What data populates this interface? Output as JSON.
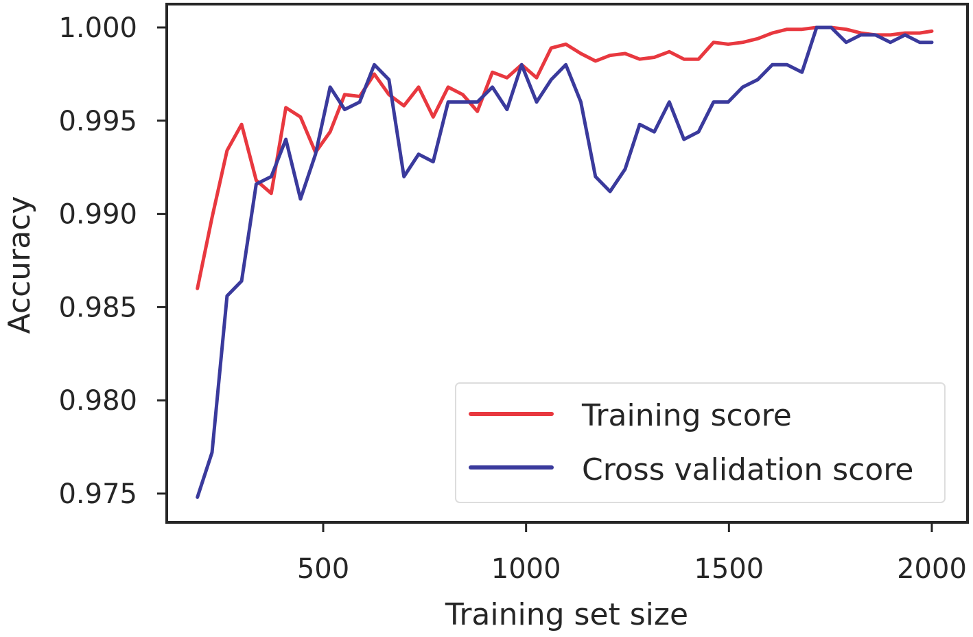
{
  "chart_data": {
    "type": "line",
    "title": "",
    "xlabel": "Training set size",
    "ylabel": "Accuracy",
    "xlim": [
      200,
      2000
    ],
    "ylim": [
      0.9738,
      1.0006
    ],
    "xticks": [
      500,
      1000,
      1500,
      2000
    ],
    "xtick_labels": [
      "500",
      "1000",
      "1500",
      "2000"
    ],
    "yticks": [
      0.975,
      0.98,
      0.985,
      0.99,
      0.995,
      1.0
    ],
    "ytick_labels": [
      "0.975",
      "0.980",
      "0.985",
      "0.990",
      "0.995",
      "1.000"
    ],
    "grid": false,
    "legend_position": "lower-right",
    "x": [
      190,
      226,
      263,
      299,
      335,
      372,
      408,
      444,
      481,
      517,
      553,
      590,
      626,
      662,
      699,
      735,
      771,
      808,
      844,
      880,
      917,
      953,
      989,
      1026,
      1062,
      1098,
      1135,
      1171,
      1207,
      1244,
      1280,
      1316,
      1353,
      1389,
      1425,
      1462,
      1498,
      1534,
      1571,
      1607,
      1643,
      1680,
      1716,
      1752,
      1789,
      1825,
      1861,
      1898,
      1934,
      1970,
      2000
    ],
    "series": [
      {
        "name": "Training score",
        "color": "#e8383f",
        "values": [
          0.986,
          0.9898,
          0.9934,
          0.9948,
          0.9918,
          0.9911,
          0.9957,
          0.9952,
          0.9933,
          0.9944,
          0.9964,
          0.9963,
          0.9975,
          0.9964,
          0.9958,
          0.9968,
          0.9952,
          0.9968,
          0.9964,
          0.9955,
          0.9976,
          0.9973,
          0.998,
          0.9973,
          0.9989,
          0.9991,
          0.9986,
          0.9982,
          0.9985,
          0.9986,
          0.9983,
          0.9984,
          0.9987,
          0.9983,
          0.9983,
          0.9992,
          0.9991,
          0.9992,
          0.9994,
          0.9997,
          0.9999,
          0.9999,
          1.0,
          1.0,
          0.9999,
          0.9997,
          0.9996,
          0.9996,
          0.9997,
          0.9997,
          0.9998
        ]
      },
      {
        "name": "Cross validation score",
        "color": "#3a3a9c",
        "values": [
          0.9748,
          0.9772,
          0.9856,
          0.9864,
          0.9916,
          0.992,
          0.994,
          0.9908,
          0.9932,
          0.9968,
          0.9956,
          0.996,
          0.998,
          0.9972,
          0.992,
          0.9932,
          0.9928,
          0.996,
          0.996,
          0.996,
          0.9968,
          0.9956,
          0.998,
          0.996,
          0.9972,
          0.998,
          0.996,
          0.992,
          0.9912,
          0.9924,
          0.9948,
          0.9944,
          0.996,
          0.994,
          0.9944,
          0.996,
          0.996,
          0.9968,
          0.9972,
          0.998,
          0.998,
          0.9976,
          1.0,
          1.0,
          0.9992,
          0.9996,
          0.9996,
          0.9992,
          0.9996,
          0.9992,
          0.9992
        ]
      }
    ]
  }
}
